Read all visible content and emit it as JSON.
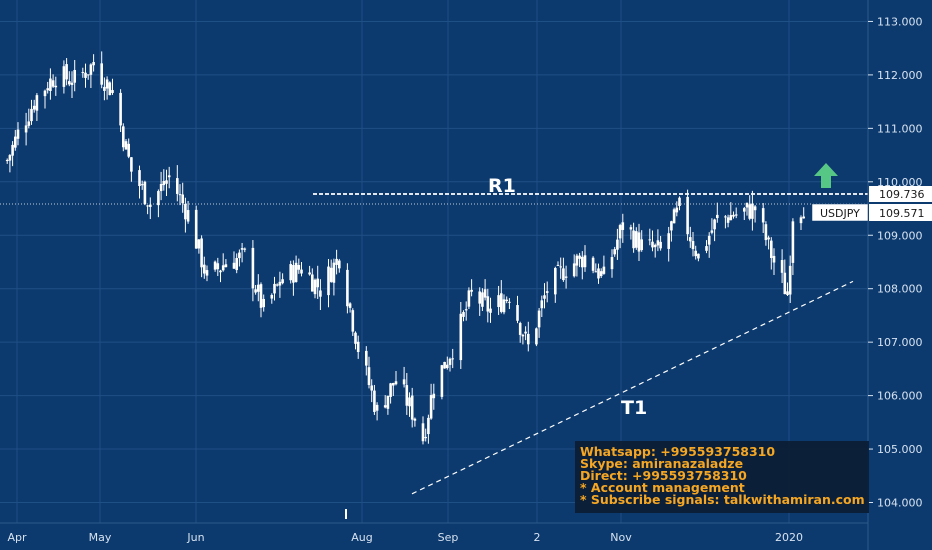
{
  "chart_data": {
    "type": "candlestick",
    "symbol": "USDJPY",
    "ylim": [
      103.7,
      113.3
    ],
    "y_ticks": [
      "113.000",
      "112.000",
      "111.000",
      "110.000",
      "109.000",
      "108.000",
      "107.000",
      "106.000",
      "105.000",
      "104.000"
    ],
    "x_labels": [
      "Apr",
      "May",
      "Jun",
      "Aug",
      "Sep",
      "2",
      "Nov",
      "2020"
    ],
    "price_current": "109.571",
    "price_resistance": "109.736",
    "annotations": {
      "resistance_label": "R1",
      "trendline_label": "T1"
    },
    "trendline": {
      "start": {
        "date": "2019-08-26",
        "price": 104.35
      },
      "end": {
        "date": "2020-01-20",
        "price": 108.1
      }
    },
    "colors": {
      "background": "#0d3a6e",
      "candle": "#ffffff",
      "up_arrow": "#57c785",
      "info_text": "#f5a623",
      "info_box": "#0b1d33"
    },
    "close_path": [
      [
        "2019-03-25",
        110.4
      ],
      [
        "2019-03-29",
        110.9
      ],
      [
        "2019-04-05",
        111.6
      ],
      [
        "2019-04-12",
        112.0
      ],
      [
        "2019-04-19",
        111.9
      ],
      [
        "2019-04-26",
        112.2
      ],
      [
        "2019-05-03",
        111.7
      ],
      [
        "2019-05-10",
        110.2
      ],
      [
        "2019-05-17",
        109.6
      ],
      [
        "2019-05-24",
        110.1
      ],
      [
        "2019-05-31",
        109.4
      ],
      [
        "2019-06-07",
        108.2
      ],
      [
        "2019-06-14",
        108.5
      ],
      [
        "2019-06-21",
        108.6
      ],
      [
        "2019-06-28",
        107.6
      ],
      [
        "2019-07-05",
        108.2
      ],
      [
        "2019-07-12",
        108.4
      ],
      [
        "2019-07-19",
        108.0
      ],
      [
        "2019-07-26",
        108.6
      ],
      [
        "2019-08-02",
        106.9
      ],
      [
        "2019-08-09",
        105.7
      ],
      [
        "2019-08-16",
        106.3
      ],
      [
        "2019-08-23",
        105.6
      ],
      [
        "2019-08-26",
        105.2
      ],
      [
        "2019-08-30",
        106.2
      ],
      [
        "2019-09-06",
        106.9
      ],
      [
        "2019-09-13",
        107.9
      ],
      [
        "2019-09-20",
        107.6
      ],
      [
        "2019-09-27",
        107.9
      ],
      [
        "2019-10-04",
        106.9
      ],
      [
        "2019-10-11",
        108.0
      ],
      [
        "2019-10-18",
        108.4
      ],
      [
        "2019-10-25",
        108.6
      ],
      [
        "2019-11-01",
        108.2
      ],
      [
        "2019-11-08",
        109.2
      ],
      [
        "2019-11-15",
        108.8
      ],
      [
        "2019-11-22",
        108.7
      ],
      [
        "2019-11-29",
        109.5
      ],
      [
        "2019-12-06",
        108.6
      ],
      [
        "2019-12-13",
        109.3
      ],
      [
        "2019-12-20",
        109.4
      ],
      [
        "2019-12-27",
        109.5
      ],
      [
        "2020-01-03",
        108.5
      ],
      [
        "2020-01-08",
        107.9
      ],
      [
        "2020-01-10",
        109.4
      ],
      [
        "2020-01-14",
        109.57
      ]
    ]
  },
  "info_box": {
    "lines": [
      "Whatsapp: +995593758310",
      "Skype: amiranazaladze",
      "Direct: +995593758310",
      "* Account management",
      "* Subscribe signals: talkwithamiran.com"
    ]
  }
}
